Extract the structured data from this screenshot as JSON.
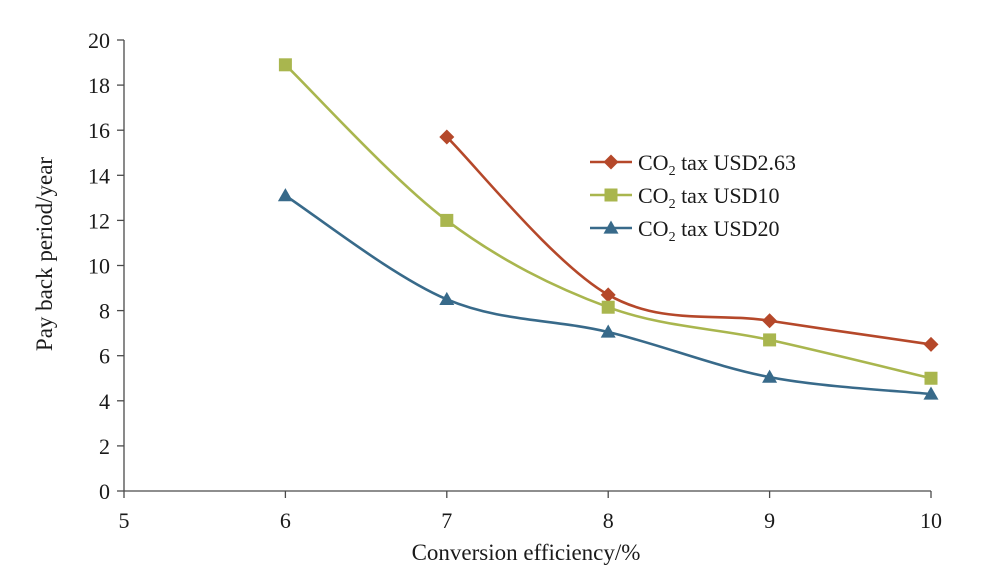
{
  "chart_data": {
    "type": "line",
    "title": "",
    "xlabel": "Conversion efficiency/%",
    "ylabel": "Pay back period/year",
    "xlim": [
      5,
      10
    ],
    "ylim": [
      0,
      20
    ],
    "x_ticks": [
      5,
      6,
      7,
      8,
      9,
      10
    ],
    "y_ticks": [
      0,
      2,
      4,
      6,
      8,
      10,
      12,
      14,
      16,
      18,
      20
    ],
    "smooth": true,
    "grid": false,
    "legend_position": "right",
    "series": [
      {
        "name_prefix": "CO",
        "name_sub": "2",
        "name_suffix": " tax USD2.63",
        "marker": "diamond",
        "color": "#b5482a",
        "points": [
          [
            7,
            15.7
          ],
          [
            8,
            8.7
          ],
          [
            9,
            7.55
          ],
          [
            10,
            6.5
          ]
        ]
      },
      {
        "name_prefix": "CO",
        "name_sub": "2",
        "name_suffix": " tax USD10",
        "marker": "square",
        "color": "#a9b64e",
        "points": [
          [
            6,
            18.9
          ],
          [
            7,
            12.0
          ],
          [
            8,
            8.15
          ],
          [
            9,
            6.7
          ],
          [
            10,
            5.0
          ]
        ]
      },
      {
        "name_prefix": "CO",
        "name_sub": "2",
        "name_suffix": " tax USD20",
        "marker": "triangle",
        "color": "#386a8a",
        "points": [
          [
            6,
            13.1
          ],
          [
            7,
            8.5
          ],
          [
            8,
            7.05
          ],
          [
            9,
            5.05
          ],
          [
            10,
            4.3
          ]
        ]
      }
    ]
  }
}
